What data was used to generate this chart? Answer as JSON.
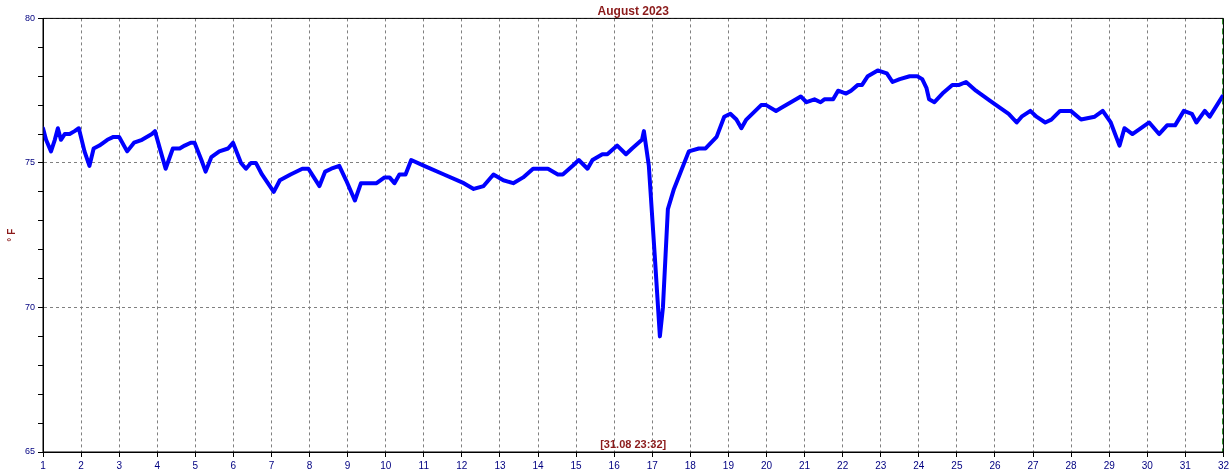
{
  "chart_data": {
    "type": "line",
    "title": "August 2023",
    "ylabel": "° F",
    "annotations": [
      "[31.08 23:32]"
    ],
    "xlim": [
      1,
      32
    ],
    "xticks": [
      1,
      2,
      3,
      4,
      5,
      6,
      7,
      8,
      9,
      10,
      11,
      12,
      13,
      14,
      15,
      16,
      17,
      18,
      19,
      20,
      21,
      22,
      23,
      24,
      25,
      26,
      27,
      28,
      29,
      30,
      31,
      32
    ],
    "ylim": [
      65,
      80
    ],
    "yticks": [
      65,
      {
        "value": 66,
        "label": null
      },
      {
        "value": 67,
        "label": null
      },
      {
        "value": 68,
        "label": null
      },
      {
        "value": 69,
        "label": null
      },
      70,
      {
        "value": 71,
        "label": null
      },
      {
        "value": 72,
        "label": null
      },
      {
        "value": 73,
        "label": null
      },
      {
        "value": 74,
        "label": null
      },
      75,
      {
        "value": 76,
        "label": null
      },
      {
        "value": 77,
        "label": null
      },
      {
        "value": 78,
        "label": null
      },
      {
        "value": 79,
        "label": null
      },
      80
    ],
    "grid": true,
    "marker": "none",
    "line_style": "solid",
    "legend": false,
    "ref_lines": [
      {
        "axis": "x",
        "value": 31.98,
        "color": "#008000",
        "line_style": "dashed"
      }
    ],
    "series": [
      {
        "color": "#0000ff",
        "x": [
          1.0,
          1.08,
          1.21,
          1.31,
          1.39,
          1.47,
          1.57,
          1.7,
          1.83,
          1.94,
          2.09,
          2.22,
          2.33,
          2.48,
          2.69,
          2.85,
          3.0,
          3.21,
          3.39,
          3.6,
          3.86,
          3.94,
          4.09,
          4.22,
          4.41,
          4.59,
          4.72,
          4.88,
          4.98,
          5.16,
          5.27,
          5.42,
          5.63,
          5.86,
          5.99,
          6.2,
          6.33,
          6.46,
          6.59,
          6.75,
          7.06,
          7.22,
          7.5,
          7.81,
          7.97,
          8.26,
          8.41,
          8.57,
          8.78,
          8.96,
          9.19,
          9.35,
          9.56,
          9.76,
          9.97,
          10.1,
          10.23,
          10.36,
          10.52,
          10.67,
          11.01,
          11.53,
          12.05,
          12.31,
          12.57,
          12.83,
          13.09,
          13.35,
          13.61,
          13.87,
          14.26,
          14.52,
          14.65,
          14.91,
          15.07,
          15.3,
          15.43,
          15.69,
          15.82,
          16.08,
          16.31,
          16.47,
          16.73,
          16.78,
          16.91,
          17.07,
          17.2,
          17.28,
          17.41,
          17.57,
          17.72,
          17.96,
          18.22,
          18.4,
          18.69,
          18.89,
          19.05,
          19.21,
          19.34,
          19.47,
          19.86,
          19.99,
          20.25,
          20.38,
          20.64,
          20.9,
          21.05,
          21.26,
          21.42,
          21.52,
          21.75,
          21.88,
          22.09,
          22.22,
          22.4,
          22.51,
          22.66,
          22.92,
          23.16,
          23.31,
          23.5,
          23.76,
          23.96,
          24.09,
          24.2,
          24.27,
          24.41,
          24.62,
          24.88,
          25.06,
          25.24,
          25.5,
          25.92,
          26.36,
          26.57,
          26.7,
          26.93,
          27.09,
          27.32,
          27.48,
          27.71,
          27.99,
          28.26,
          28.62,
          28.83,
          29.04,
          29.27,
          29.4,
          29.61,
          30.05,
          30.31,
          30.52,
          30.73,
          30.96,
          31.17,
          31.29,
          31.51,
          31.64,
          31.83,
          31.97
        ],
        "values": [
          76.2,
          75.8,
          75.4,
          75.8,
          76.2,
          75.8,
          76.0,
          76.0,
          76.1,
          76.2,
          75.4,
          74.9,
          75.5,
          75.6,
          75.8,
          75.9,
          75.9,
          75.4,
          75.7,
          75.8,
          76.0,
          76.1,
          75.4,
          74.8,
          75.5,
          75.5,
          75.6,
          75.7,
          75.7,
          75.1,
          74.7,
          75.2,
          75.4,
          75.5,
          75.7,
          75.0,
          74.8,
          75.0,
          75.0,
          74.6,
          74.0,
          74.4,
          74.6,
          74.8,
          74.8,
          74.2,
          74.7,
          74.8,
          74.9,
          74.4,
          73.7,
          74.3,
          74.3,
          74.3,
          74.5,
          74.5,
          74.3,
          74.6,
          74.6,
          75.1,
          74.9,
          74.6,
          74.3,
          74.1,
          74.2,
          74.6,
          74.4,
          74.3,
          74.5,
          74.8,
          74.8,
          74.6,
          74.6,
          74.9,
          75.1,
          74.8,
          75.1,
          75.3,
          75.3,
          75.6,
          75.3,
          75.5,
          75.8,
          76.1,
          74.9,
          71.7,
          69.0,
          70.0,
          73.4,
          74.1,
          74.6,
          75.4,
          75.5,
          75.5,
          75.9,
          76.6,
          76.7,
          76.5,
          76.2,
          76.5,
          77.0,
          77.0,
          76.8,
          76.9,
          77.1,
          77.3,
          77.1,
          77.2,
          77.1,
          77.2,
          77.2,
          77.5,
          77.4,
          77.5,
          77.7,
          77.7,
          78.0,
          78.2,
          78.1,
          77.8,
          77.9,
          78.0,
          78.0,
          77.9,
          77.6,
          77.2,
          77.1,
          77.4,
          77.7,
          77.7,
          77.8,
          77.5,
          77.1,
          76.7,
          76.4,
          76.6,
          76.8,
          76.6,
          76.4,
          76.5,
          76.8,
          76.8,
          76.5,
          76.6,
          76.8,
          76.4,
          75.6,
          76.2,
          76.0,
          76.4,
          76.0,
          76.3,
          76.3,
          76.8,
          76.7,
          76.4,
          76.8,
          76.6,
          77.0,
          77.3
        ]
      }
    ]
  }
}
